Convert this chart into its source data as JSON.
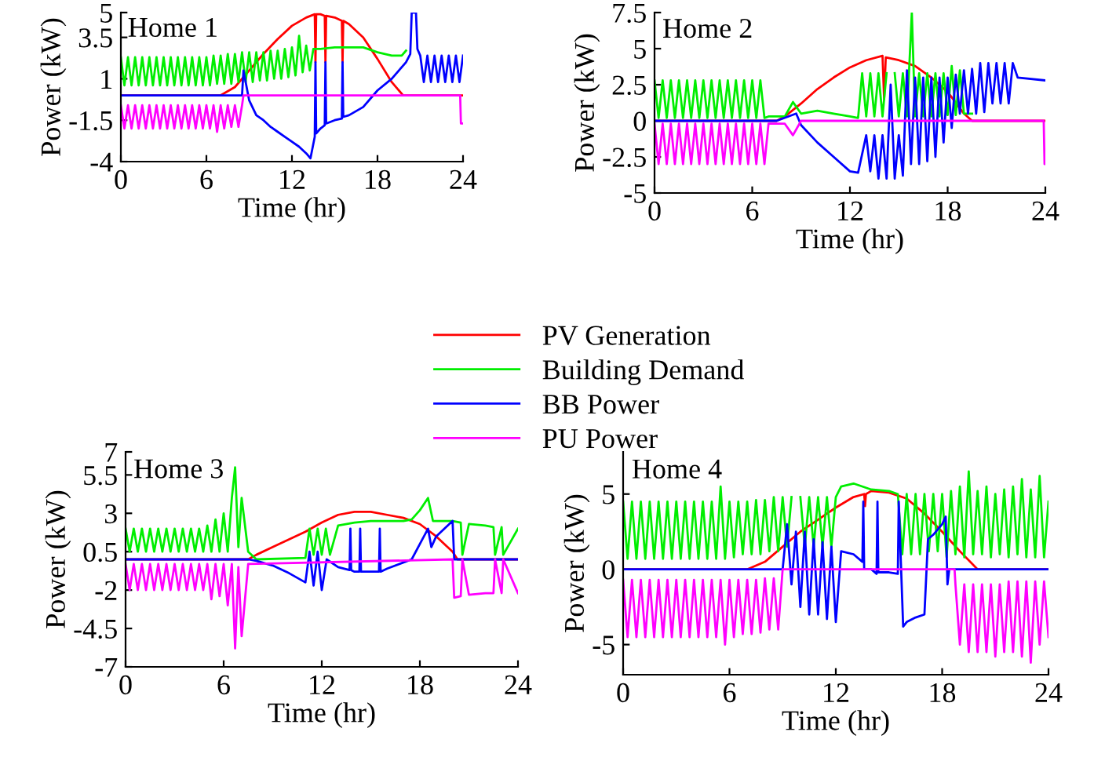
{
  "chart_data": [
    {
      "type": "line",
      "title": "Home 1",
      "xlabel": "Time (hr)",
      "ylabel": "Power (kW)",
      "xlim": [
        0,
        24
      ],
      "xticks": [
        0,
        6,
        12,
        18,
        24
      ],
      "ylim": [
        -4,
        5
      ],
      "yticks": [
        -4,
        -1.5,
        1,
        3.5,
        5
      ],
      "legend": "bottom right",
      "grid": false,
      "series": [
        {
          "name": "PV Generation",
          "color": "#ff0000",
          "x": [
            0,
            7,
            8,
            9,
            10,
            11,
            12,
            13,
            13.6,
            13.65,
            13.7,
            14,
            14.3,
            14.35,
            14.4,
            15,
            15.5,
            15.55,
            15.6,
            16,
            17,
            18,
            19,
            19.8,
            20,
            24
          ],
          "values": [
            0,
            0,
            0.5,
            1.5,
            2.5,
            3.4,
            4.2,
            4.7,
            4.9,
            2,
            4.9,
            4.9,
            4.8,
            2,
            4.8,
            4.7,
            4.5,
            2,
            4.5,
            4.3,
            3.5,
            2.2,
            0.8,
            0,
            0,
            0
          ]
        },
        {
          "name": "Building Demand",
          "color": "#00ee00",
          "x": [
            0,
            0.25,
            0.5,
            0.75,
            1,
            1.25,
            1.5,
            1.75,
            2,
            2.25,
            2.5,
            2.75,
            3,
            3.25,
            3.5,
            3.75,
            4,
            4.25,
            4.5,
            4.75,
            5,
            5.25,
            5.5,
            5.75,
            6,
            6.25,
            6.5,
            6.75,
            7,
            7.25,
            7.5,
            7.75,
            8,
            8.25,
            8.5,
            8.75,
            9,
            9.25,
            9.5,
            9.75,
            10,
            10.25,
            10.5,
            10.75,
            11,
            11.25,
            11.5,
            11.75,
            12,
            12.25,
            12.5,
            12.75,
            13,
            13.25,
            13.5,
            14,
            15,
            16,
            17,
            18,
            19,
            19.7,
            20
          ],
          "values": [
            2.3,
            0.6,
            2.3,
            0.6,
            2.3,
            0.6,
            2.3,
            0.6,
            2.3,
            0.6,
            2.3,
            0.6,
            2.3,
            0.6,
            2.3,
            0.6,
            2.3,
            0.6,
            2.3,
            0.6,
            2.3,
            0.6,
            2.3,
            0.6,
            2.3,
            0.6,
            2.4,
            0.7,
            2.4,
            0.7,
            2.5,
            0.7,
            2.5,
            0.8,
            2.6,
            0.8,
            2.6,
            0.8,
            2.6,
            0.9,
            2.6,
            0.9,
            2.7,
            1,
            2.7,
            1,
            2.8,
            1.1,
            2.9,
            1.2,
            3.6,
            1.4,
            3,
            1.5,
            2.8,
            2.8,
            2.9,
            2.9,
            2.9,
            2.6,
            2.4,
            2.4,
            2.7
          ]
        },
        {
          "name": "BB Power",
          "color": "#0000ff",
          "x": [
            0,
            8.5,
            8.6,
            9,
            9.5,
            10,
            10.5,
            11,
            11.5,
            12,
            12.5,
            13,
            13.3,
            13.6,
            13.65,
            13.7,
            14,
            14.3,
            14.35,
            14.4,
            15,
            15.5,
            15.55,
            15.6,
            16,
            17,
            18,
            19,
            20,
            20.3,
            20.4,
            20.7,
            20.8,
            21,
            21.25,
            21.5,
            21.75,
            22,
            22.25,
            22.5,
            22.75,
            23,
            23.25,
            23.5,
            23.75,
            24
          ],
          "values": [
            0,
            0,
            1.5,
            -0.3,
            -1.2,
            -1.5,
            -1.9,
            -2.2,
            -2.5,
            -2.8,
            -3.1,
            -3.5,
            -3.8,
            -2.5,
            2,
            -2.3,
            -2,
            -1.8,
            2,
            -1.7,
            -1.5,
            -1.4,
            2,
            -1.3,
            -1.2,
            -0.7,
            0.3,
            1,
            2,
            2.5,
            5,
            5,
            2.8,
            2.4,
            0.8,
            2.4,
            0.8,
            2.4,
            0.8,
            2.4,
            0.8,
            2.4,
            0.8,
            2.4,
            0.8,
            2.4
          ]
        },
        {
          "name": "PU Power",
          "color": "#ff00ff",
          "x": [
            0,
            0.25,
            0.5,
            0.75,
            1,
            1.25,
            1.5,
            1.75,
            2,
            2.25,
            2.5,
            2.75,
            3,
            3.25,
            3.5,
            3.75,
            4,
            4.25,
            4.5,
            4.75,
            5,
            5.25,
            5.5,
            5.75,
            6,
            6.25,
            6.5,
            6.75,
            7,
            7.25,
            7.5,
            7.75,
            8,
            8.25,
            8.5,
            8.6,
            23.8,
            23.85,
            24
          ],
          "values": [
            -0.6,
            -2,
            -0.6,
            -2,
            -0.6,
            -2,
            -0.6,
            -2,
            -0.6,
            -2,
            -0.6,
            -2,
            -0.6,
            -2,
            -0.6,
            -2,
            -0.6,
            -2,
            -0.6,
            -2,
            -0.6,
            -2,
            -0.6,
            -2,
            -0.6,
            -2,
            -0.6,
            -2.2,
            -0.6,
            -2,
            -0.6,
            -1.9,
            -0.6,
            -1.9,
            -0.6,
            0,
            0,
            -1.7,
            -1.7
          ]
        }
      ]
    },
    {
      "type": "line",
      "title": "Home 2",
      "xlabel": "Time (hr)",
      "ylabel": "Power (kW)",
      "xlim": [
        0,
        24
      ],
      "xticks": [
        0,
        6,
        12,
        18,
        24
      ],
      "ylim": [
        -5,
        7.5
      ],
      "yticks": [
        -5,
        -2.5,
        0,
        2.5,
        5,
        7.5
      ],
      "grid": false,
      "series": [
        {
          "color": "#ff0000",
          "x": [
            0,
            7.5,
            8,
            9,
            10,
            11,
            12,
            13,
            14,
            14.1,
            14.2,
            15,
            16,
            17,
            18,
            19,
            19.5,
            24
          ],
          "values": [
            0,
            0,
            0.3,
            1.2,
            2.2,
            3,
            3.7,
            4.2,
            4.5,
            1.5,
            4.4,
            4.2,
            3.8,
            3,
            2,
            0.5,
            0,
            0
          ]
        },
        {
          "color": "#00ee00",
          "x": [
            0,
            0.25,
            0.5,
            0.75,
            1,
            1.25,
            1.5,
            1.75,
            2,
            2.25,
            2.5,
            2.75,
            3,
            3.25,
            3.5,
            3.75,
            4,
            4.25,
            4.5,
            4.75,
            5,
            5.25,
            5.5,
            5.75,
            6,
            6.25,
            6.5,
            6.75,
            7,
            8,
            8.5,
            9,
            10,
            11,
            12,
            12.5,
            12.75,
            13,
            13.25,
            13.5,
            13.75,
            14,
            14.25,
            14.5,
            14.75,
            15,
            15.25,
            15.5,
            15.8,
            16,
            16.25,
            16.5,
            16.75,
            17,
            17.25,
            17.5,
            17.75,
            18,
            18.25,
            18.5,
            18.75,
            19,
            19.5
          ],
          "values": [
            2.8,
            0.2,
            2.8,
            0.2,
            2.8,
            0.2,
            2.8,
            0.2,
            2.8,
            0.2,
            2.8,
            0.2,
            2.8,
            0.2,
            2.8,
            0.2,
            2.8,
            0.2,
            2.8,
            0.2,
            2.8,
            0.2,
            2.8,
            0.2,
            2.8,
            0.2,
            2.8,
            0.2,
            0.3,
            0.3,
            1.3,
            0.5,
            0.7,
            0.5,
            0.3,
            0.2,
            3.3,
            0.3,
            3.3,
            0.3,
            3.3,
            0.3,
            3.3,
            null,
            3.3,
            0.3,
            3.3,
            0.3,
            7.5,
            0.3,
            3.3,
            0.3,
            3.3,
            0.3,
            3.3,
            0.3,
            3.3,
            0.4,
            3.8,
            0.4,
            3.5,
            0.5,
            0.5
          ]
        },
        {
          "color": "#0000ff",
          "x": [
            0,
            7.5,
            8.7,
            9,
            10,
            11,
            12,
            12.5,
            13,
            13.25,
            13.5,
            13.75,
            14,
            14.25,
            14.5,
            14.75,
            15,
            15.25,
            15.5,
            15.75,
            16,
            16.25,
            16.5,
            16.75,
            17,
            17.25,
            17.5,
            17.75,
            18,
            18.25,
            18.5,
            18.75,
            19,
            19.25,
            19.5,
            19.75,
            20,
            20.25,
            20.5,
            20.75,
            21,
            21.25,
            21.5,
            21.75,
            22,
            22.3,
            24
          ],
          "values": [
            0,
            0,
            0.5,
            -0.3,
            -1.5,
            -2.5,
            -3.5,
            -3.6,
            -1,
            -3.5,
            -1,
            -4,
            -1,
            -4,
            2.5,
            -4,
            -1,
            -3.8,
            3.5,
            -3,
            3,
            -3,
            3,
            -2.8,
            3,
            -2.5,
            3,
            -1.5,
            3,
            -0.5,
            3.2,
            0.5,
            3.5,
            0.5,
            3.6,
            0.5,
            4,
            0.6,
            4,
            1.2,
            4,
            1.2,
            4,
            1.2,
            4,
            3,
            2.8
          ]
        },
        {
          "color": "#ff00ff",
          "x": [
            0,
            0.25,
            0.5,
            0.75,
            1,
            1.25,
            1.5,
            1.75,
            2,
            2.25,
            2.5,
            2.75,
            3,
            3.25,
            3.5,
            3.75,
            4,
            4.25,
            4.5,
            4.75,
            5,
            5.25,
            5.5,
            5.75,
            6,
            6.25,
            6.5,
            6.75,
            7,
            8,
            8.5,
            9,
            23.9,
            23.95,
            24
          ],
          "values": [
            -0.2,
            -3,
            -0.2,
            -3,
            -0.2,
            -3,
            -0.2,
            -3,
            -0.2,
            -3,
            -0.2,
            -3,
            -0.2,
            -3,
            -0.2,
            -3,
            -0.2,
            -3,
            -0.2,
            -3,
            -0.2,
            -3,
            -0.2,
            -3,
            -0.2,
            -3,
            -0.2,
            -3,
            -0.2,
            -0.2,
            -1,
            0,
            0,
            -3,
            -3
          ]
        }
      ]
    },
    {
      "type": "line",
      "title": "Home 3",
      "xlabel": "Time (hr)",
      "ylabel": "Power (kW)",
      "xlim": [
        0,
        24
      ],
      "xticks": [
        0,
        6,
        12,
        18,
        24
      ],
      "ylim": [
        -7,
        7
      ],
      "yticks": [
        -7,
        -4.5,
        -2,
        0.5,
        3,
        5.5,
        7
      ],
      "grid": false,
      "series": [
        {
          "color": "#ff0000",
          "x": [
            0,
            7.5,
            8,
            9,
            10,
            11,
            12,
            13,
            14,
            15,
            16,
            17,
            18,
            19,
            20,
            20.3,
            24
          ],
          "values": [
            0,
            0,
            0.3,
            0.8,
            1.3,
            1.8,
            2.4,
            2.9,
            3.1,
            3.1,
            2.9,
            2.7,
            2.3,
            1.5,
            0.5,
            0,
            0
          ]
        },
        {
          "color": "#00ee00",
          "x": [
            0,
            0.25,
            0.5,
            0.75,
            1,
            1.25,
            1.5,
            1.75,
            2,
            2.25,
            2.5,
            2.75,
            3,
            3.25,
            3.5,
            3.75,
            4,
            4.25,
            4.5,
            4.75,
            5,
            5.25,
            5.5,
            5.75,
            6,
            6.25,
            6.5,
            6.7,
            6.9,
            7.1,
            7.5,
            8,
            11,
            11.25,
            11.5,
            11.75,
            12,
            12.25,
            12.5,
            13,
            14,
            15,
            16,
            17,
            17.5,
            18,
            18.5,
            18.8,
            19,
            20,
            20.5,
            20.6,
            21,
            22,
            22.5,
            22.6,
            23,
            23.1,
            24
          ],
          "values": [
            2,
            0.5,
            2,
            0.5,
            2,
            0.5,
            2,
            0.5,
            2,
            0.5,
            2,
            0.5,
            2,
            0.5,
            2,
            0.5,
            2,
            0.5,
            2,
            0.5,
            2.2,
            0.5,
            2.6,
            0.5,
            3,
            0.5,
            4,
            6,
            0.8,
            4,
            0.5,
            0,
            0.1,
            2,
            0.3,
            2,
            0.3,
            2,
            0.3,
            2.2,
            2.4,
            2.5,
            2.5,
            2.5,
            2.6,
            3.2,
            4,
            2.5,
            2.5,
            2.5,
            2.4,
            0.3,
            2.3,
            2.2,
            2.1,
            0.3,
            2.1,
            0.3,
            2
          ]
        },
        {
          "color": "#0000ff",
          "x": [
            0,
            7.5,
            8,
            9,
            10,
            11,
            11.25,
            11.5,
            11.75,
            12,
            12.3,
            13,
            13.7,
            13.75,
            13.8,
            14,
            14.3,
            14.35,
            14.4,
            15,
            15.5,
            15.55,
            15.6,
            16,
            17,
            17.5,
            18,
            18.5,
            18.7,
            19,
            20,
            20.1,
            24
          ],
          "values": [
            0,
            0,
            -0.1,
            -0.4,
            -0.9,
            -1.5,
            0.5,
            -1.7,
            0.5,
            -2,
            0,
            -0.5,
            -0.7,
            2,
            -0.7,
            -0.8,
            -0.8,
            2,
            -0.8,
            -0.8,
            -0.8,
            2,
            -0.8,
            -0.6,
            -0.2,
            0,
            1,
            2,
            0.8,
            1.5,
            2.5,
            0,
            0
          ]
        },
        {
          "color": "#ff00ff",
          "x": [
            0,
            0.25,
            0.5,
            0.75,
            1,
            1.25,
            1.5,
            1.75,
            2,
            2.25,
            2.5,
            2.75,
            3,
            3.25,
            3.5,
            3.75,
            4,
            4.25,
            4.5,
            4.75,
            5,
            5.25,
            5.5,
            5.75,
            6,
            6.25,
            6.5,
            6.7,
            6.9,
            7.1,
            7.5,
            20,
            20.1,
            20.5,
            20.6,
            21,
            22,
            22.5,
            22.6,
            23,
            23.1,
            24
          ],
          "values": [
            -0.3,
            -2,
            -0.3,
            -2,
            -0.3,
            -2,
            -0.3,
            -2,
            -0.3,
            -2,
            -0.3,
            -2,
            -0.3,
            -2,
            -0.3,
            -2,
            -0.3,
            -2,
            -0.3,
            -2,
            -0.3,
            -2.6,
            -0.3,
            -2.4,
            -0.3,
            -3,
            -0.3,
            -5.8,
            -0.5,
            -5,
            -0.3,
            0,
            -2.5,
            -2.4,
            0,
            -2.3,
            -2.2,
            -2.2,
            0,
            -2.2,
            0,
            -2.2
          ]
        }
      ]
    },
    {
      "type": "line",
      "title": "Home 4",
      "xlabel": "Time (hr)",
      "ylabel": "Power (kW)",
      "xlim": [
        0,
        24
      ],
      "xticks": [
        0,
        6,
        12,
        18,
        24
      ],
      "ylim": [
        -7,
        7.8
      ],
      "yticks": [
        -5,
        0,
        5
      ],
      "grid": false,
      "series": [
        {
          "color": "#ff0000",
          "x": [
            0,
            7,
            8,
            9,
            10,
            11,
            12,
            13,
            13.6,
            13.65,
            13.7,
            14,
            15,
            16,
            17,
            18,
            19,
            20,
            24
          ],
          "values": [
            0,
            0,
            0.5,
            1.5,
            2.5,
            3.3,
            4.1,
            4.8,
            5,
            4.2,
            5,
            5.2,
            5.1,
            4.7,
            3.7,
            2.5,
            1.2,
            0,
            0
          ]
        },
        {
          "color": "#00ee00",
          "x": [
            0,
            0.25,
            0.5,
            0.75,
            1,
            1.25,
            1.5,
            1.75,
            2,
            2.25,
            2.5,
            2.75,
            3,
            3.25,
            3.5,
            3.75,
            4,
            4.25,
            4.5,
            4.75,
            5,
            5.25,
            5.5,
            5.75,
            6,
            6.25,
            6.5,
            6.75,
            7,
            7.25,
            7.5,
            7.75,
            8,
            8.25,
            8.5,
            8.75,
            9,
            9.25,
            9.5,
            9.75,
            10,
            10.25,
            10.5,
            10.75,
            11,
            11.25,
            11.5,
            11.75,
            12,
            12.3,
            13,
            14,
            15,
            15.5,
            15.75,
            16,
            16.25,
            16.5,
            16.75,
            17,
            17.25,
            17.5,
            17.75,
            18,
            18.25,
            18.5,
            18.75,
            19,
            19.25,
            19.5,
            19.75,
            20,
            20.25,
            20.5,
            20.75,
            21,
            21.25,
            21.5,
            21.75,
            22,
            22.25,
            22.5,
            22.75,
            23,
            23.25,
            23.5,
            23.75,
            24
          ],
          "values": [
            4.5,
            0.7,
            4.5,
            0.7,
            4.5,
            0.7,
            4.5,
            0.7,
            4.5,
            0.7,
            4.5,
            0.7,
            4.5,
            0.7,
            4.5,
            0.7,
            4.5,
            0.7,
            4.5,
            0.7,
            4.5,
            0.7,
            5.5,
            0.7,
            4.5,
            0.8,
            4.5,
            1,
            4.5,
            1,
            4.6,
            1,
            4.6,
            1.2,
            4.8,
            1.2,
            4.8,
            1.5,
            4.8,
            null,
            4.8,
            1.5,
            4.8,
            1.5,
            4.8,
            1.5,
            4.8,
            1.5,
            4.8,
            5.5,
            5.7,
            5.3,
            5.2,
            5,
            1,
            5,
            1,
            5,
            1,
            5,
            1.2,
            5,
            1.2,
            5,
            0.8,
            5.2,
            1,
            5.5,
            0.8,
            6.5,
            1,
            5.2,
            1,
            5.5,
            0.8,
            5,
            1,
            5.3,
            0.8,
            5.5,
            1,
            6,
            0.8,
            5.3,
            0.8,
            6.2,
            0.8,
            4.5
          ]
        },
        {
          "color": "#0000ff",
          "x": [
            0,
            9,
            9.25,
            9.5,
            9.75,
            10,
            10.25,
            10.5,
            10.75,
            11,
            11.25,
            11.5,
            11.75,
            12,
            12.3,
            13,
            13.5,
            13.55,
            13.6,
            14,
            14.3,
            14.35,
            14.4,
            15,
            15.5,
            15.55,
            15.8,
            16,
            16.5,
            17,
            17.2,
            17.5,
            18,
            18.2,
            18.3,
            18.4,
            24
          ],
          "values": [
            0,
            0,
            3,
            -1,
            2.5,
            -2.5,
            2.5,
            -3,
            2,
            -3,
            1.8,
            -3.3,
            1.5,
            -3.5,
            1.2,
            1,
            0.5,
            4.5,
            0,
            0,
            -0.3,
            4.5,
            -0.2,
            -0.2,
            -0.3,
            4.5,
            -3.8,
            -3.5,
            -3.2,
            -3,
            2,
            2.3,
            3,
            3.5,
            -1,
            0,
            0
          ]
        },
        {
          "color": "#ff00ff",
          "x": [
            0,
            0.25,
            0.5,
            0.75,
            1,
            1.25,
            1.5,
            1.75,
            2,
            2.25,
            2.5,
            2.75,
            3,
            3.25,
            3.5,
            3.75,
            4,
            4.25,
            4.5,
            4.75,
            5,
            5.25,
            5.5,
            5.75,
            6,
            6.25,
            6.5,
            6.75,
            7,
            7.25,
            7.5,
            7.75,
            8,
            8.25,
            8.5,
            8.75,
            9,
            18.7,
            18.75,
            19,
            19.25,
            19.5,
            19.75,
            20,
            20.25,
            20.5,
            20.75,
            21,
            21.25,
            21.5,
            21.75,
            22,
            22.25,
            22.5,
            22.75,
            23,
            23.25,
            23.5,
            23.75,
            24
          ],
          "values": [
            -0.7,
            -4.5,
            -0.7,
            -4.5,
            -0.7,
            -4.5,
            -0.7,
            -4.5,
            -0.7,
            -4.5,
            -0.7,
            -4.5,
            -0.7,
            -4.5,
            -0.7,
            -4.5,
            -0.7,
            -4.5,
            -0.7,
            -4.5,
            -0.7,
            -4.5,
            -0.7,
            -5,
            -0.7,
            -4.5,
            -0.7,
            -4.3,
            -0.7,
            -4.3,
            -0.7,
            -4.2,
            -0.6,
            -4,
            -0.6,
            -4,
            0,
            0,
            -1,
            -5,
            -1,
            -5.5,
            -1,
            -5.5,
            -1,
            -5.5,
            -1,
            -5.8,
            -1,
            -5.5,
            -0.8,
            -5.5,
            -0.8,
            -5.8,
            -0.8,
            -6.2,
            -0.8,
            -5,
            -0.8,
            -4.5
          ]
        }
      ]
    }
  ]
}
